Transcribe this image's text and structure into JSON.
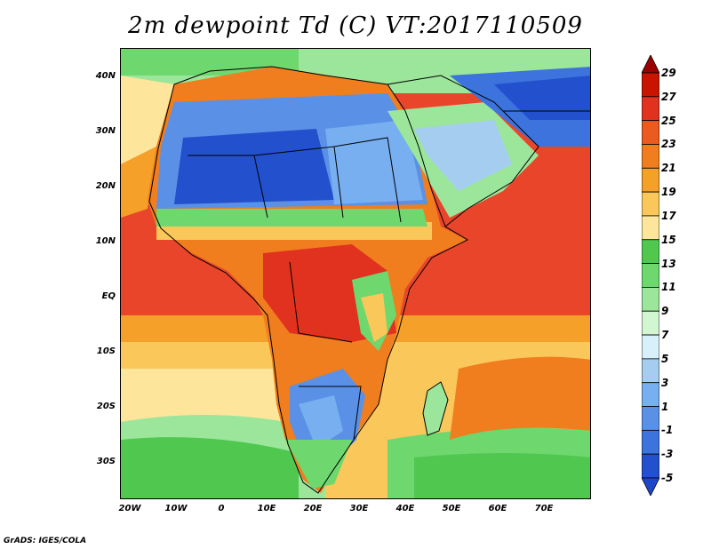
{
  "title": "2m dewpoint Td (C) VT:2017110509",
  "credit": "GrADS: IGES/COLA",
  "lat_labels": [
    "40N",
    "30N",
    "20N",
    "10N",
    "EQ",
    "10S",
    "20S",
    "30S"
  ],
  "lon_labels": [
    "20W",
    "10W",
    "0",
    "10E",
    "20E",
    "30E",
    "40E",
    "50E",
    "60E",
    "70E"
  ],
  "colorbar": {
    "labels": [
      "29",
      "27",
      "25",
      "23",
      "21",
      "19",
      "17",
      "15",
      "13",
      "11",
      "9",
      "7",
      "5",
      "3",
      "1",
      "-1",
      "-3",
      "-5"
    ],
    "colors": [
      "#9a0000",
      "#c81400",
      "#e0321e",
      "#eb5a1e",
      "#f07d1e",
      "#f5a028",
      "#fac85a",
      "#fde69b",
      "#50c850",
      "#6ed76e",
      "#9be69b",
      "#d2f5d2",
      "#d8f0fa",
      "#a5cdf0",
      "#78aff0",
      "#5a91e6",
      "#3c73dc",
      "#2350cd",
      "#1e46c8"
    ]
  },
  "map_regions": {
    "ocean": "Atlantic / Indian Ocean (21-25 C)",
    "sahara": "Sahara (-5 to 5 C)",
    "arabia": "Arabian Peninsula (1 to 9 C)",
    "southern_africa": "Kalahari (1 to 5 C)",
    "southern_ocean": "South Atlantic (9-15 C)"
  }
}
